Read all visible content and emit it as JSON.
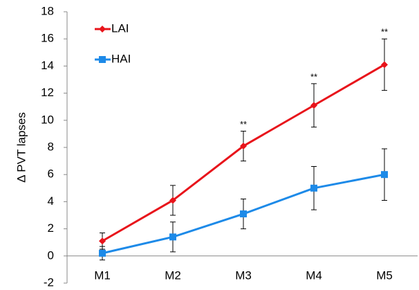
{
  "chart_data": {
    "type": "line",
    "y_label": "Δ PVT lapses",
    "categories": [
      "M1",
      "M2",
      "M3",
      "M4",
      "M5"
    ],
    "series": [
      {
        "name": "LAI",
        "color": "#e8141b",
        "marker": "diamond",
        "values": [
          1.1,
          4.1,
          8.1,
          11.1,
          14.1
        ],
        "errors": [
          0.6,
          1.1,
          1.1,
          1.6,
          1.9
        ]
      },
      {
        "name": "HAI",
        "color": "#1d8ae8",
        "marker": "square",
        "values": [
          0.2,
          1.4,
          3.1,
          5.0,
          6.0
        ],
        "errors": [
          0.5,
          1.1,
          1.1,
          1.6,
          1.9
        ]
      }
    ],
    "annotations": [
      {
        "text": "**",
        "at": "M3"
      },
      {
        "text": "**",
        "at": "M4"
      },
      {
        "text": "**",
        "at": "M5"
      }
    ],
    "ylim": [
      -2,
      18
    ],
    "yticks": [
      -2,
      0,
      2,
      4,
      6,
      8,
      10,
      12,
      14,
      16,
      18
    ],
    "grid": false
  }
}
